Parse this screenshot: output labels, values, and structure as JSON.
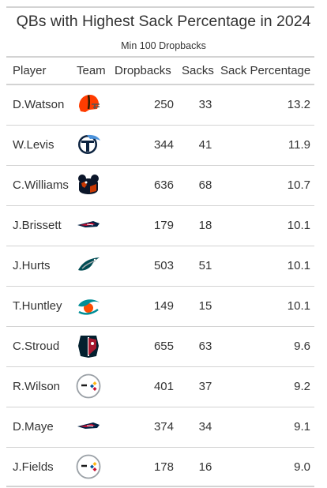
{
  "chart_data": {
    "type": "table",
    "title": "QBs with Highest Sack Percentage in 2024",
    "subtitle": "Min 100 Dropbacks",
    "columns": [
      "Player",
      "Team",
      "Dropbacks",
      "Sacks",
      "Sack Percentage"
    ],
    "rows": [
      {
        "player": "D.Watson",
        "team_icon": "browns-helmet-icon",
        "dropbacks": "250",
        "sacks": "33",
        "sack_pct": "13.2"
      },
      {
        "player": "W.Levis",
        "team_icon": "titans-logo-icon",
        "dropbacks": "344",
        "sacks": "41",
        "sack_pct": "11.9"
      },
      {
        "player": "C.Williams",
        "team_icon": "bears-logo-icon",
        "dropbacks": "636",
        "sacks": "68",
        "sack_pct": "10.7"
      },
      {
        "player": "J.Brissett",
        "team_icon": "patriots-logo-icon",
        "dropbacks": "179",
        "sacks": "18",
        "sack_pct": "10.1"
      },
      {
        "player": "J.Hurts",
        "team_icon": "eagles-logo-icon",
        "dropbacks": "503",
        "sacks": "51",
        "sack_pct": "10.1"
      },
      {
        "player": "T.Huntley",
        "team_icon": "dolphins-logo-icon",
        "dropbacks": "149",
        "sacks": "15",
        "sack_pct": "10.1"
      },
      {
        "player": "C.Stroud",
        "team_icon": "texans-logo-icon",
        "dropbacks": "655",
        "sacks": "63",
        "sack_pct": "9.6"
      },
      {
        "player": "R.Wilson",
        "team_icon": "steelers-logo-icon",
        "dropbacks": "401",
        "sacks": "37",
        "sack_pct": "9.2"
      },
      {
        "player": "D.Maye",
        "team_icon": "patriots-logo-icon",
        "dropbacks": "374",
        "sacks": "34",
        "sack_pct": "9.1"
      },
      {
        "player": "J.Fields",
        "team_icon": "steelers-logo-icon",
        "dropbacks": "178",
        "sacks": "16",
        "sack_pct": "9.0"
      }
    ]
  },
  "colors": {
    "text": "#333333",
    "rule": "#d3d3d3",
    "browns_orange": "#ff3c00",
    "browns_brown": "#311d00",
    "titans_navy": "#0c2340",
    "titans_blue": "#4b92db",
    "bears_navy": "#0b162a",
    "bears_orange": "#c83803",
    "patriots_navy": "#002244",
    "patriots_red": "#c60c30",
    "eagles_green": "#004c54",
    "dolphins_aqua": "#008e97",
    "dolphins_orange": "#fc4c02",
    "texans_navy": "#03202f",
    "texans_red": "#a71930",
    "steelers_gold": "#ffb612",
    "steelers_red": "#c60c30",
    "steelers_blue": "#00539b"
  }
}
